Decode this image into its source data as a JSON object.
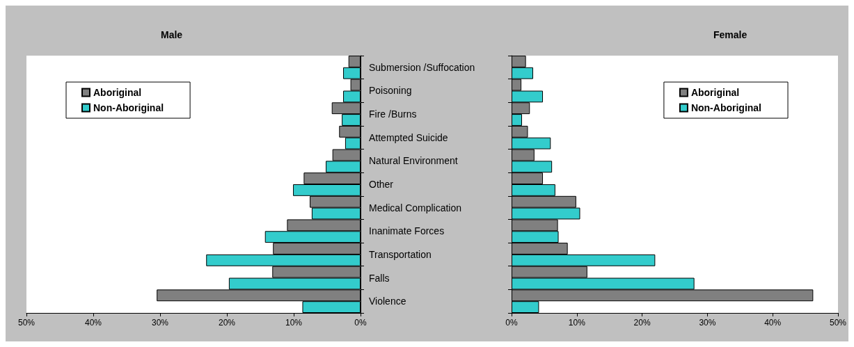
{
  "chart_data": [
    {
      "type": "bar",
      "orientation": "horizontal",
      "title": "Male",
      "categories": [
        "Submersion /Suffocation",
        "Poisoning",
        "Fire /Burns",
        "Attempted Suicide",
        "Natural Environment",
        "Other",
        "Medical Complication",
        "Inanimate Forces",
        "Transportation",
        "Falls",
        "Violence"
      ],
      "series": [
        {
          "name": "Aboriginal",
          "color": "#808080",
          "values": [
            1.8,
            1.5,
            4.3,
            3.2,
            4.2,
            8.5,
            7.6,
            11.0,
            13.1,
            13.2,
            30.5
          ]
        },
        {
          "name": "Non-Aboriginal",
          "color": "#33cccc",
          "values": [
            2.6,
            2.6,
            2.8,
            2.3,
            5.2,
            10.1,
            7.3,
            14.3,
            23.1,
            19.7,
            8.7
          ]
        }
      ],
      "xlim": [
        50,
        0
      ],
      "xticks": [
        {
          "value": 50,
          "label": "50%"
        },
        {
          "value": 40,
          "label": "40%"
        },
        {
          "value": 30,
          "label": "30%"
        },
        {
          "value": 20,
          "label": "20%"
        },
        {
          "value": 10,
          "label": "10%"
        },
        {
          "value": 0,
          "label": "0%"
        }
      ],
      "legend": "top left"
    },
    {
      "type": "bar",
      "orientation": "horizontal",
      "title": "Female",
      "categories": [
        null,
        null,
        null,
        null,
        null,
        null,
        null,
        null,
        null,
        null,
        null
      ],
      "series": [
        {
          "name": "Aboriginal",
          "color": "#808080",
          "values": [
            2.2,
            1.5,
            2.8,
            2.5,
            3.5,
            4.8,
            9.9,
            7.1,
            8.6,
            11.6,
            46.2
          ]
        },
        {
          "name": "Non-Aboriginal",
          "color": "#33cccc",
          "values": [
            3.3,
            4.8,
            1.6,
            6.0,
            6.2,
            6.7,
            10.5,
            7.2,
            22.0,
            28.0,
            4.2
          ]
        }
      ],
      "xlim": [
        0,
        50
      ],
      "xticks": [
        {
          "value": 0,
          "label": "0%"
        },
        {
          "value": 10,
          "label": "10%"
        },
        {
          "value": 20,
          "label": "20%"
        },
        {
          "value": 30,
          "label": "30%"
        },
        {
          "value": 40,
          "label": "40%"
        },
        {
          "value": 50,
          "label": "50%"
        }
      ],
      "legend": "top right"
    }
  ]
}
